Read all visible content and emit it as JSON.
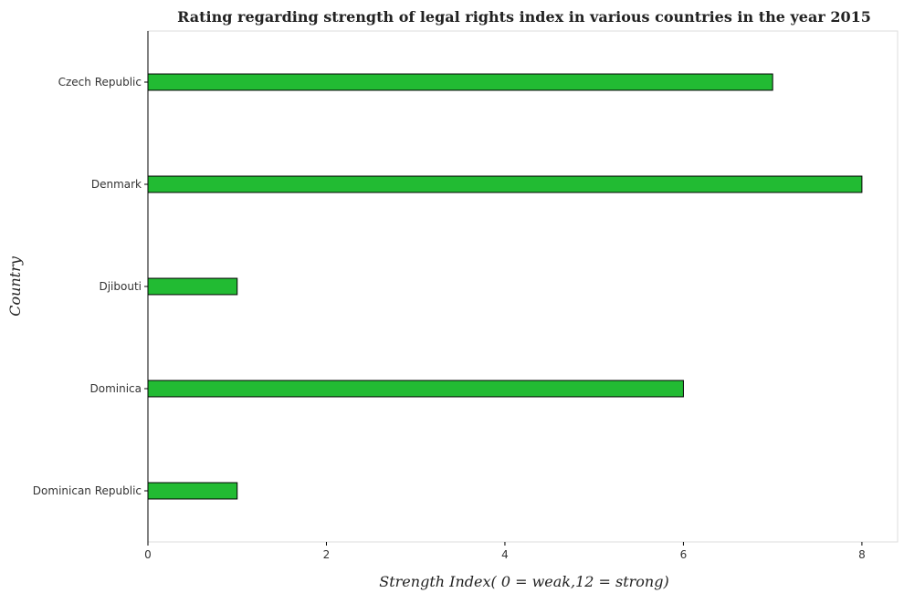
{
  "chart_data": {
    "type": "bar",
    "orientation": "horizontal",
    "title": "Rating regarding strength of legal rights index in various countries in the year 2015",
    "xlabel": "Strength Index( 0 = weak,12 = strong)",
    "ylabel": "Country",
    "categories": [
      "Czech Republic",
      "Denmark",
      "Djibouti",
      "Dominica",
      "Dominican Republic"
    ],
    "values": [
      7,
      8,
      1,
      6,
      1
    ],
    "xlim": [
      0,
      8.4
    ],
    "xticks": [
      0,
      2,
      4,
      6,
      8
    ],
    "xtick_labels": [
      "0",
      "2",
      "4",
      "6",
      "8"
    ],
    "grid": false,
    "bar_color": "#22bb33"
  }
}
